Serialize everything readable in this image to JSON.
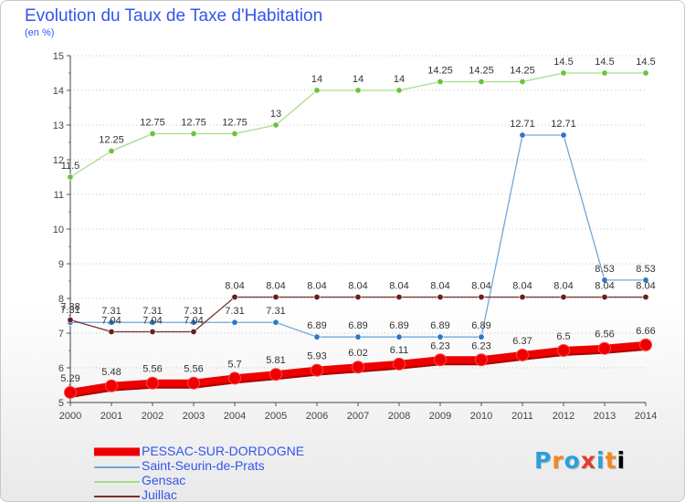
{
  "page": {
    "title": "Evolution du Taux de Taxe d'Habitation",
    "subtitle": "(en %)"
  },
  "logo": {
    "text": "Proxiti"
  },
  "chart_data": {
    "type": "line",
    "title": "Evolution du Taux de Taxe d'Habitation",
    "ylabel": "(en %)",
    "xlabel": "",
    "x": [
      "2000",
      "2001",
      "2002",
      "2003",
      "2004",
      "2005",
      "2006",
      "2007",
      "2008",
      "2009",
      "2010",
      "2011",
      "2012",
      "2013",
      "2014"
    ],
    "ylim": [
      5,
      15
    ],
    "yticks": [
      "5",
      "6",
      "7",
      "8",
      "9",
      "10",
      "11",
      "12",
      "13",
      "14",
      "15"
    ],
    "grid": "horizontal dotted",
    "legend_position": "bottom-left",
    "series": [
      {
        "name": "PESSAC-SUR-DORDOGNE",
        "color": "#ee0000",
        "marker": "#ee0000",
        "width": "thick",
        "values": [
          5.29,
          5.48,
          5.56,
          5.56,
          5.7,
          5.81,
          5.93,
          6.02,
          6.11,
          6.23,
          6.23,
          6.37,
          6.5,
          6.56,
          6.66
        ],
        "labels": [
          "5.29",
          "5.48",
          "5.56",
          "5.56",
          "5.7",
          "5.81",
          "5.93",
          "6.02",
          "6.11",
          "6.23",
          "6.23",
          "6.37",
          "6.5",
          "6.56",
          "6.66"
        ]
      },
      {
        "name": "Saint-Seurin-de-Prats",
        "color": "#6fa8dc",
        "marker": "#2f78c4",
        "width": "thin",
        "values": [
          7.31,
          7.31,
          7.31,
          7.31,
          7.31,
          7.31,
          6.89,
          6.89,
          6.89,
          6.89,
          6.89,
          12.71,
          12.71,
          8.53,
          8.53
        ],
        "labels": [
          "7.31",
          "7.31",
          "7.31",
          "7.31",
          "7.31",
          "7.31",
          "6.89",
          "6.89",
          "6.89",
          "6.89",
          "6.89",
          "12.71",
          "12.71",
          "8.53",
          "8.53"
        ]
      },
      {
        "name": "Gensac",
        "color": "#a6dd88",
        "marker": "#6cc23c",
        "width": "thin",
        "values": [
          11.5,
          12.25,
          12.75,
          12.75,
          12.75,
          13,
          14,
          14,
          14,
          14.25,
          14.25,
          14.25,
          14.5,
          14.5,
          14.5
        ],
        "labels": [
          "11.5",
          "12.25",
          "12.75",
          "12.75",
          "12.75",
          "13",
          "14",
          "14",
          "14",
          "14.25",
          "14.25",
          "14.25",
          "14.5",
          "14.5",
          "14.5"
        ]
      },
      {
        "name": "Juillac",
        "color": "#7a2e2e",
        "marker": "#6a1e1e",
        "width": "thin",
        "values": [
          7.38,
          7.04,
          7.04,
          7.04,
          8.04,
          8.04,
          8.04,
          8.04,
          8.04,
          8.04,
          8.04,
          8.04,
          8.04,
          8.04,
          8.04
        ],
        "labels": [
          "7.38",
          "7.04",
          "7.04",
          "7.04",
          "8.04",
          "8.04",
          "8.04",
          "8.04",
          "8.04",
          "8.04",
          "8.04",
          "8.04",
          "8.04",
          "8.04",
          "8.04"
        ]
      }
    ]
  }
}
